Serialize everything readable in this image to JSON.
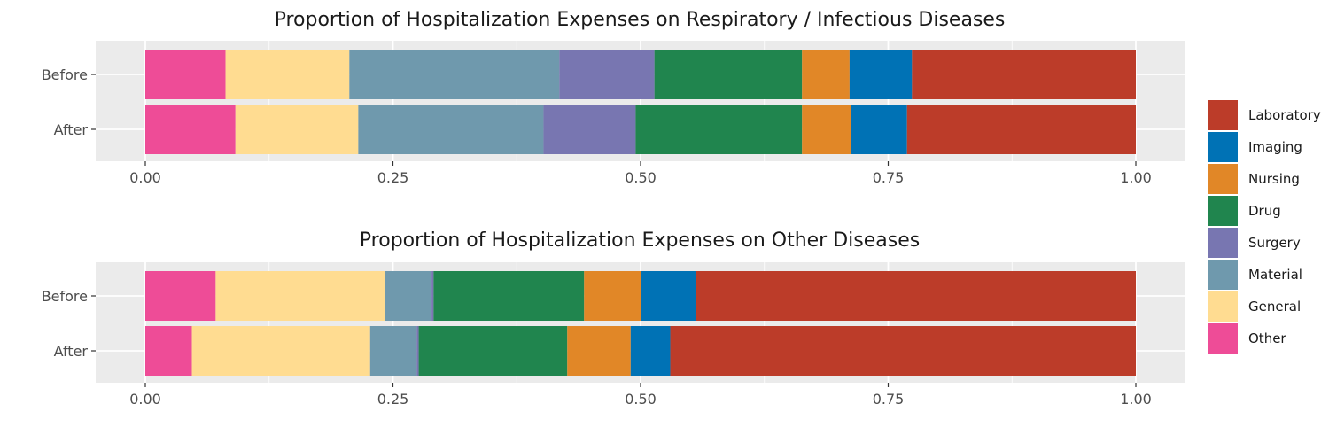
{
  "chart_data": [
    {
      "type": "bar",
      "orientation": "horizontal",
      "stacked": true,
      "title": "Proportion of Hospitalization Expenses on Respiratory / Infectious Diseases",
      "xlabel": "",
      "ylabel": "",
      "xlim": [
        0,
        1
      ],
      "xticks": [
        "0.00",
        "0.25",
        "0.50",
        "0.75",
        "1.00"
      ],
      "categories": [
        "Before",
        "After"
      ],
      "series": [
        {
          "name": "Other",
          "values": [
            0.081,
            0.091
          ]
        },
        {
          "name": "General",
          "values": [
            0.125,
            0.124
          ]
        },
        {
          "name": "Material",
          "values": [
            0.212,
            0.187
          ]
        },
        {
          "name": "Surgery",
          "values": [
            0.096,
            0.093
          ]
        },
        {
          "name": "Drug",
          "values": [
            0.149,
            0.168
          ]
        },
        {
          "name": "Nursing",
          "values": [
            0.048,
            0.049
          ]
        },
        {
          "name": "Imaging",
          "values": [
            0.063,
            0.057
          ]
        },
        {
          "name": "Laboratory",
          "values": [
            0.226,
            0.231
          ]
        }
      ],
      "grid": true
    },
    {
      "type": "bar",
      "orientation": "horizontal",
      "stacked": true,
      "title": "Proportion of Hospitalization Expenses on Other Diseases",
      "xlabel": "",
      "ylabel": "",
      "xlim": [
        0,
        1
      ],
      "xticks": [
        "0.00",
        "0.25",
        "0.50",
        "0.75",
        "1.00"
      ],
      "categories": [
        "Before",
        "After"
      ],
      "series": [
        {
          "name": "Other",
          "values": [
            0.071,
            0.047
          ]
        },
        {
          "name": "General",
          "values": [
            0.171,
            0.18
          ]
        },
        {
          "name": "Material",
          "values": [
            0.047,
            0.047
          ]
        },
        {
          "name": "Surgery",
          "values": [
            0.002,
            0.002
          ]
        },
        {
          "name": "Drug",
          "values": [
            0.152,
            0.15
          ]
        },
        {
          "name": "Nursing",
          "values": [
            0.057,
            0.064
          ]
        },
        {
          "name": "Imaging",
          "values": [
            0.056,
            0.04
          ]
        },
        {
          "name": "Laboratory",
          "values": [
            0.444,
            0.47
          ]
        }
      ],
      "grid": true
    }
  ],
  "legend": {
    "position": "right",
    "items": [
      {
        "name": "Laboratory",
        "color": "#BC3C29"
      },
      {
        "name": "Imaging",
        "color": "#0072B5"
      },
      {
        "name": "Nursing",
        "color": "#E18727"
      },
      {
        "name": "Drug",
        "color": "#20854E"
      },
      {
        "name": "Surgery",
        "color": "#7876B1"
      },
      {
        "name": "Material",
        "color": "#6F99AD"
      },
      {
        "name": "General",
        "color": "#FFDC91"
      },
      {
        "name": "Other",
        "color": "#EE4C97"
      }
    ]
  },
  "colors": {
    "panel_background": "#EBEBEB",
    "gridline": "#FFFFFF"
  }
}
